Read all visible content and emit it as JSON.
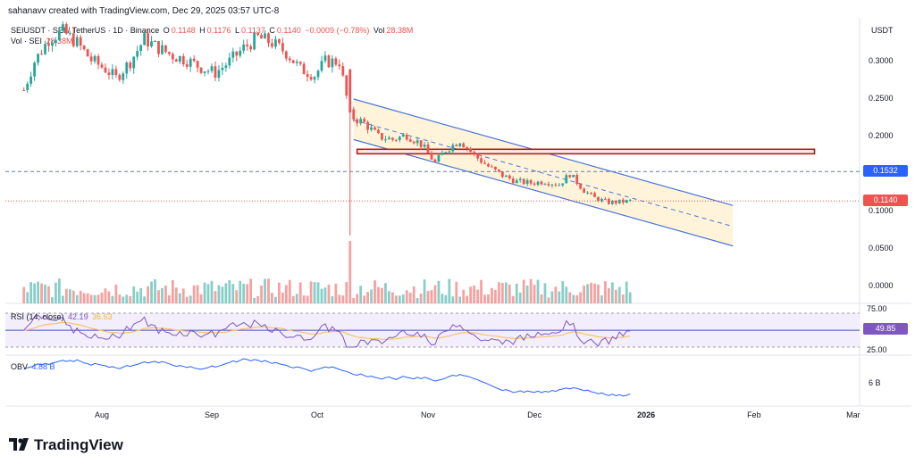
{
  "header": {
    "text": "sahanavv created with TradingView.com, Dec 29, 2025 03:57 UTC-8"
  },
  "legend": {
    "symbol": "SEIUSDT · SEI / TetherUS · 1D · Binance",
    "open_label": "O",
    "open": "0.1148",
    "high_label": "H",
    "high": "0.1176",
    "low_label": "L",
    "low": "0.1137",
    "close_label": "C",
    "close": "0.1140",
    "change": "−0.0009 (−0.78%)",
    "vol_label": "Vol",
    "vol": "28.38M",
    "vol_line_label": "Vol · SEI",
    "vol_line_value": "28.38M"
  },
  "price_axis": {
    "currency": "USDT",
    "ticks": [
      "0.3000",
      "0.2500",
      "0.2000",
      "0.1500",
      "0.1000",
      "0.0500",
      "0.0000"
    ]
  },
  "price_tags": {
    "level": "0.1532",
    "last": "0.1140"
  },
  "rsi": {
    "label": "RSI (14, close)",
    "value": "42.19",
    "ma": "36.63",
    "axis_top": "75.00",
    "axis_bottom": "25.00",
    "tag": "49.85"
  },
  "obv": {
    "label": "OBV",
    "value": "4.88 B",
    "axis": "6 B"
  },
  "time_axis": [
    "Aug",
    "Sep",
    "Oct",
    "Nov",
    "Dec",
    "2026",
    "Feb",
    "Mar"
  ],
  "brand": "TradingView",
  "colors": {
    "up": "#26a69a",
    "down": "#ef5350",
    "channel": "#4a74d9",
    "channel_fill": "#fff3d6",
    "zone": "#b71c1c",
    "rsi": "#7e57c2",
    "rsi_ma": "#f5c26b",
    "obv": "#2962ff",
    "level": "#5b7ea8"
  },
  "chart_data": {
    "type": "candlestick",
    "symbol": "SEIUSDT",
    "interval": "1D",
    "ylim": [
      0,
      0.33
    ],
    "close_series": [
      {
        "date": "2025-07-10",
        "close": 0.262
      },
      {
        "date": "2025-07-13",
        "close": 0.3
      },
      {
        "date": "2025-07-17",
        "close": 0.33
      },
      {
        "date": "2025-07-21",
        "close": 0.34
      },
      {
        "date": "2025-07-25",
        "close": 0.325
      },
      {
        "date": "2025-07-29",
        "close": 0.302
      },
      {
        "date": "2025-08-02",
        "close": 0.29
      },
      {
        "date": "2025-08-05",
        "close": 0.278
      },
      {
        "date": "2025-08-09",
        "close": 0.3
      },
      {
        "date": "2025-08-13",
        "close": 0.33
      },
      {
        "date": "2025-08-17",
        "close": 0.318
      },
      {
        "date": "2025-08-21",
        "close": 0.308
      },
      {
        "date": "2025-08-25",
        "close": 0.302
      },
      {
        "date": "2025-08-29",
        "close": 0.292
      },
      {
        "date": "2025-09-02",
        "close": 0.285
      },
      {
        "date": "2025-09-06",
        "close": 0.3
      },
      {
        "date": "2025-09-10",
        "close": 0.318
      },
      {
        "date": "2025-09-14",
        "close": 0.332
      },
      {
        "date": "2025-09-18",
        "close": 0.325
      },
      {
        "date": "2025-09-22",
        "close": 0.312
      },
      {
        "date": "2025-09-26",
        "close": 0.29
      },
      {
        "date": "2025-09-30",
        "close": 0.282
      },
      {
        "date": "2025-10-03",
        "close": 0.3
      },
      {
        "date": "2025-10-07",
        "close": 0.3
      },
      {
        "date": "2025-10-10",
        "close": 0.23
      },
      {
        "date": "2025-10-11",
        "close": 0.225
      },
      {
        "date": "2025-10-14",
        "close": 0.218
      },
      {
        "date": "2025-10-18",
        "close": 0.2
      },
      {
        "date": "2025-10-22",
        "close": 0.196
      },
      {
        "date": "2025-10-26",
        "close": 0.202
      },
      {
        "date": "2025-10-30",
        "close": 0.19
      },
      {
        "date": "2025-11-03",
        "close": 0.165
      },
      {
        "date": "2025-11-06",
        "close": 0.182
      },
      {
        "date": "2025-11-10",
        "close": 0.195
      },
      {
        "date": "2025-11-14",
        "close": 0.175
      },
      {
        "date": "2025-11-18",
        "close": 0.16
      },
      {
        "date": "2025-11-22",
        "close": 0.148
      },
      {
        "date": "2025-11-26",
        "close": 0.14
      },
      {
        "date": "2025-11-30",
        "close": 0.138
      },
      {
        "date": "2025-12-04",
        "close": 0.14
      },
      {
        "date": "2025-12-08",
        "close": 0.136
      },
      {
        "date": "2025-12-11",
        "close": 0.15
      },
      {
        "date": "2025-12-15",
        "close": 0.128
      },
      {
        "date": "2025-12-18",
        "close": 0.118
      },
      {
        "date": "2025-12-22",
        "close": 0.112
      },
      {
        "date": "2025-12-26",
        "close": 0.113
      },
      {
        "date": "2025-12-28",
        "close": 0.114
      }
    ],
    "horizontal_level": 0.1532,
    "resistance_zone": [
      0.177,
      0.183
    ],
    "channel_start": {
      "date": "2025-10-11",
      "upper": 0.25,
      "mid": 0.222,
      "lower": 0.196
    },
    "channel_end": {
      "date": "2026-01-26",
      "upper": 0.108,
      "mid": 0.08,
      "lower": 0.054
    },
    "rsi": {
      "ylim": [
        25,
        75
      ],
      "last": 42.19,
      "ma_last": 36.63,
      "level": 49.85
    },
    "obv": {
      "last": "4.88 B"
    }
  }
}
